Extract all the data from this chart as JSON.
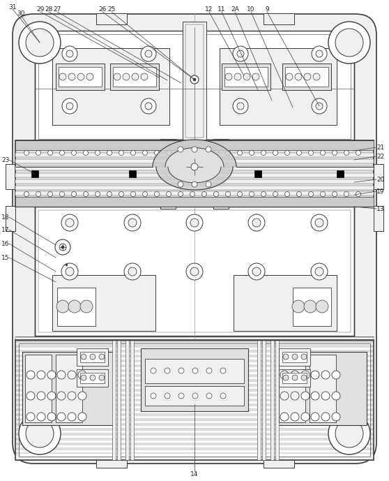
{
  "bg_color": "#ffffff",
  "lc": "#3a3a3a",
  "lc_thin": "#5a5a5a",
  "lc_thick": "#222222",
  "fill_white": "#ffffff",
  "fill_light": "#f0f0f0",
  "fill_mid": "#e0e0e0",
  "fill_gray": "#cccccc",
  "fill_dark": "#aaaaaa",
  "fig_width": 5.58,
  "fig_height": 6.89
}
